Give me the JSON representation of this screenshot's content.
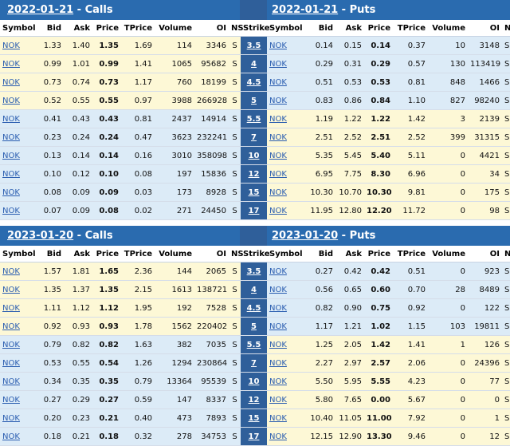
{
  "headers": {
    "symbol": "Symbol",
    "bid": "Bid",
    "ask": "Ask",
    "price": "Price",
    "tprice": "TPrice",
    "volume": "Volume",
    "oi": "OI",
    "ns": "NS",
    "strike": "Strike"
  },
  "chains": [
    {
      "calls_date": "2022-01-21",
      "calls_suffix": " - Calls",
      "puts_date": "2022-01-21",
      "puts_suffix": " - Puts",
      "split": 4,
      "rows": [
        {
          "strike": "3.5",
          "c": [
            "NOK",
            "1.33",
            "1.40",
            "1.35",
            "1.69",
            "114",
            "3346",
            "S"
          ],
          "p": [
            "NOK",
            "0.14",
            "0.15",
            "0.14",
            "0.37",
            "10",
            "3148",
            "S"
          ]
        },
        {
          "strike": "4",
          "c": [
            "NOK",
            "0.99",
            "1.01",
            "0.99",
            "1.41",
            "1065",
            "95682",
            "S"
          ],
          "p": [
            "NOK",
            "0.29",
            "0.31",
            "0.29",
            "0.57",
            "130",
            "113419",
            "S"
          ]
        },
        {
          "strike": "4.5",
          "c": [
            "NOK",
            "0.73",
            "0.74",
            "0.73",
            "1.17",
            "760",
            "18199",
            "S"
          ],
          "p": [
            "NOK",
            "0.51",
            "0.53",
            "0.53",
            "0.81",
            "848",
            "1466",
            "S"
          ]
        },
        {
          "strike": "5",
          "c": [
            "NOK",
            "0.52",
            "0.55",
            "0.55",
            "0.97",
            "3988",
            "266928",
            "S"
          ],
          "p": [
            "NOK",
            "0.83",
            "0.86",
            "0.84",
            "1.10",
            "827",
            "98240",
            "S"
          ]
        },
        {
          "strike": "5.5",
          "c": [
            "NOK",
            "0.41",
            "0.43",
            "0.43",
            "0.81",
            "2437",
            "14914",
            "S"
          ],
          "p": [
            "NOK",
            "1.19",
            "1.22",
            "1.22",
            "1.42",
            "3",
            "2139",
            "S"
          ]
        },
        {
          "strike": "7",
          "c": [
            "NOK",
            "0.23",
            "0.24",
            "0.24",
            "0.47",
            "3623",
            "232241",
            "S"
          ],
          "p": [
            "NOK",
            "2.51",
            "2.52",
            "2.51",
            "2.52",
            "399",
            "31315",
            "S"
          ]
        },
        {
          "strike": "10",
          "c": [
            "NOK",
            "0.13",
            "0.14",
            "0.14",
            "0.16",
            "3010",
            "358098",
            "S"
          ],
          "p": [
            "NOK",
            "5.35",
            "5.45",
            "5.40",
            "5.11",
            "0",
            "4421",
            "S"
          ]
        },
        {
          "strike": "12",
          "c": [
            "NOK",
            "0.10",
            "0.12",
            "0.10",
            "0.08",
            "197",
            "15836",
            "S"
          ],
          "p": [
            "NOK",
            "6.95",
            "7.75",
            "8.30",
            "6.96",
            "0",
            "34",
            "S"
          ]
        },
        {
          "strike": "15",
          "c": [
            "NOK",
            "0.08",
            "0.09",
            "0.09",
            "0.03",
            "173",
            "8928",
            "S"
          ],
          "p": [
            "NOK",
            "10.30",
            "10.70",
            "10.30",
            "9.81",
            "0",
            "175",
            "S"
          ]
        },
        {
          "strike": "17",
          "c": [
            "NOK",
            "0.07",
            "0.09",
            "0.08",
            "0.02",
            "271",
            "24450",
            "S"
          ],
          "p": [
            "NOK",
            "11.95",
            "12.80",
            "12.20",
            "11.72",
            "0",
            "98",
            "S"
          ]
        }
      ]
    },
    {
      "calls_date": "2023-01-20",
      "calls_suffix": " - Calls",
      "puts_date": "2023-01-20",
      "puts_suffix": " - Puts",
      "split": 4,
      "rows": [
        {
          "strike": "3.5",
          "c": [
            "NOK",
            "1.57",
            "1.81",
            "1.65",
            "2.36",
            "144",
            "2065",
            "S"
          ],
          "p": [
            "NOK",
            "0.27",
            "0.42",
            "0.42",
            "0.51",
            "0",
            "923",
            "S"
          ]
        },
        {
          "strike": "4",
          "c": [
            "NOK",
            "1.35",
            "1.37",
            "1.35",
            "2.15",
            "1613",
            "138721",
            "S"
          ],
          "p": [
            "NOK",
            "0.56",
            "0.65",
            "0.60",
            "0.70",
            "28",
            "8489",
            "S"
          ]
        },
        {
          "strike": "4.5",
          "c": [
            "NOK",
            "1.11",
            "1.12",
            "1.12",
            "1.95",
            "192",
            "7528",
            "S"
          ],
          "p": [
            "NOK",
            "0.82",
            "0.90",
            "0.75",
            "0.92",
            "0",
            "122",
            "S"
          ]
        },
        {
          "strike": "5",
          "c": [
            "NOK",
            "0.92",
            "0.93",
            "0.93",
            "1.78",
            "1562",
            "220402",
            "S"
          ],
          "p": [
            "NOK",
            "1.17",
            "1.21",
            "1.02",
            "1.15",
            "103",
            "19811",
            "S"
          ]
        },
        {
          "strike": "5.5",
          "c": [
            "NOK",
            "0.79",
            "0.82",
            "0.82",
            "1.63",
            "382",
            "7035",
            "S"
          ],
          "p": [
            "NOK",
            "1.25",
            "2.05",
            "1.42",
            "1.41",
            "1",
            "126",
            "S"
          ]
        },
        {
          "strike": "7",
          "c": [
            "NOK",
            "0.53",
            "0.55",
            "0.54",
            "1.26",
            "1294",
            "230864",
            "S"
          ],
          "p": [
            "NOK",
            "2.27",
            "2.97",
            "2.57",
            "2.06",
            "0",
            "24396",
            "S"
          ]
        },
        {
          "strike": "10",
          "c": [
            "NOK",
            "0.34",
            "0.35",
            "0.35",
            "0.79",
            "13364",
            "95539",
            "S"
          ],
          "p": [
            "NOK",
            "5.50",
            "5.95",
            "5.55",
            "4.23",
            "0",
            "77",
            "S"
          ]
        },
        {
          "strike": "12",
          "c": [
            "NOK",
            "0.27",
            "0.29",
            "0.27",
            "0.59",
            "147",
            "8337",
            "S"
          ],
          "p": [
            "NOK",
            "5.80",
            "7.65",
            "0.00",
            "5.67",
            "0",
            "0",
            "S"
          ]
        },
        {
          "strike": "15",
          "c": [
            "NOK",
            "0.20",
            "0.23",
            "0.21",
            "0.40",
            "473",
            "7893",
            "S"
          ],
          "p": [
            "NOK",
            "10.40",
            "11.05",
            "11.00",
            "7.92",
            "0",
            "1",
            "S"
          ]
        },
        {
          "strike": "17",
          "c": [
            "NOK",
            "0.18",
            "0.21",
            "0.18",
            "0.32",
            "278",
            "34753",
            "S"
          ],
          "p": [
            "NOK",
            "12.15",
            "12.90",
            "13.30",
            "9.46",
            "0",
            "12",
            "S"
          ]
        }
      ]
    }
  ]
}
